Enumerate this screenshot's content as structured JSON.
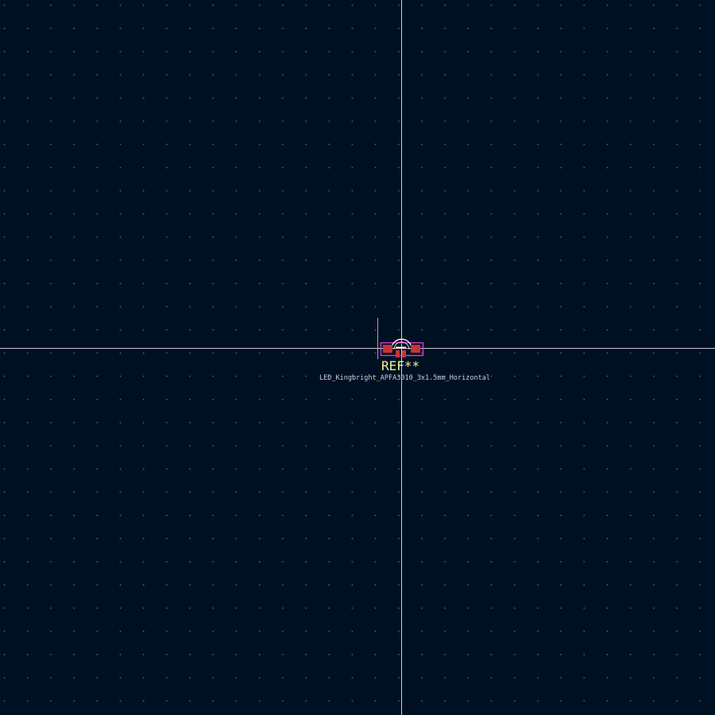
{
  "footprint": {
    "reference": "REF**",
    "value": "LED_Kingbright_APFA3010_3x1.5mm_Horizontal"
  },
  "colors": {
    "background": "#001023",
    "grid": "#4a5c7a",
    "crosshair": "#c8ccd4",
    "courtyard": "#e040e0",
    "pad": "#c83434",
    "silkscreen": "#f2f2f2",
    "reference_text": "#f2f28c"
  }
}
